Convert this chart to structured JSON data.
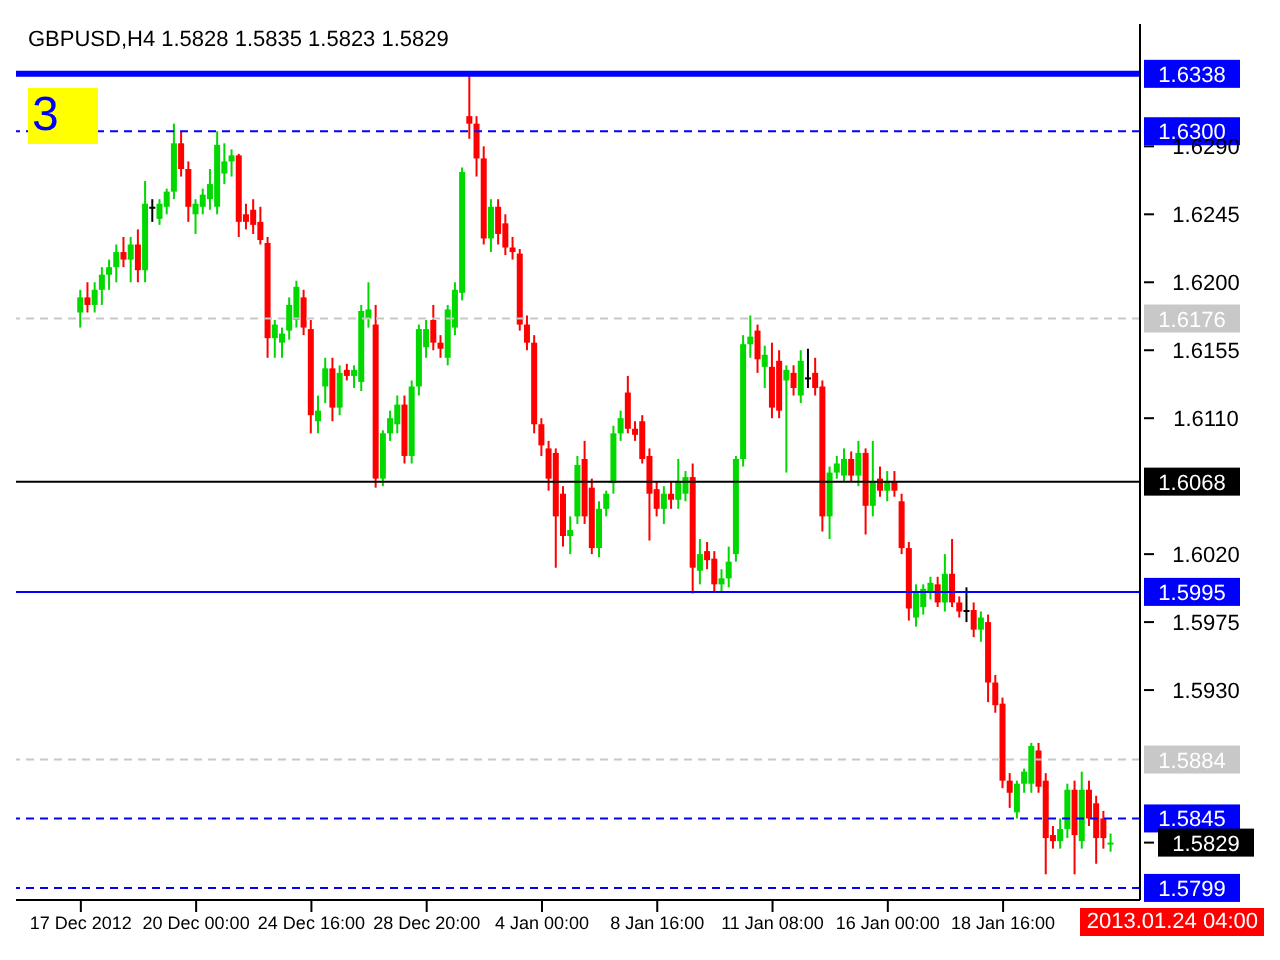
{
  "chart_data": {
    "type": "candlestick",
    "title": "GBPUSD,H4  1.5828 1.5835 1.5823 1.5829",
    "categories": [
      "17 Dec 2012",
      null,
      null,
      null,
      null,
      null,
      null,
      null,
      null,
      null,
      null,
      null,
      null,
      null,
      null,
      null,
      "20 Dec 00:00",
      null,
      null,
      null,
      null,
      null,
      null,
      null,
      null,
      null,
      null,
      null,
      null,
      null,
      null,
      null,
      "24 Dec 16:00",
      null,
      null,
      null,
      null,
      null,
      null,
      null,
      null,
      null,
      null,
      null,
      null,
      null,
      null,
      null,
      "28 Dec 20:00",
      null,
      null,
      null,
      null,
      null,
      null,
      null,
      null,
      null,
      null,
      null,
      null,
      null,
      null,
      null,
      "4 Jan 00:00",
      null,
      null,
      null,
      null,
      null,
      null,
      null,
      null,
      null,
      null,
      null,
      null,
      null,
      null,
      null,
      "8 Jan 16:00",
      null,
      null,
      null,
      null,
      null,
      null,
      null,
      null,
      null,
      null,
      null,
      null,
      null,
      null,
      null,
      "11 Jan 08:00",
      null,
      null,
      null,
      null,
      null,
      null,
      null,
      null,
      null,
      null,
      null,
      null,
      null,
      null,
      null,
      "16 Jan 00:00",
      null,
      null,
      null,
      null,
      null,
      null,
      null,
      null,
      null,
      null,
      null,
      null,
      null,
      null,
      null,
      "18 Jan 16:00",
      null,
      null,
      null,
      null,
      null,
      null,
      null,
      null,
      null,
      null,
      null,
      null,
      null,
      null,
      null
    ],
    "ohlc": [
      [
        1.618,
        1.6195,
        1.617,
        1.619
      ],
      [
        1.619,
        1.62,
        1.618,
        1.6185
      ],
      [
        1.6185,
        1.62,
        1.618,
        1.6195
      ],
      [
        1.6195,
        1.621,
        1.6185,
        1.6205
      ],
      [
        1.6205,
        1.6215,
        1.6195,
        1.621
      ],
      [
        1.621,
        1.6225,
        1.62,
        1.622
      ],
      [
        1.622,
        1.623,
        1.621,
        1.6215
      ],
      [
        1.6215,
        1.623,
        1.62,
        1.6225
      ],
      [
        1.6225,
        1.6235,
        1.62,
        1.6208
      ],
      [
        1.6208,
        1.6267,
        1.62,
        1.6252
      ],
      [
        1.625,
        1.6255,
        1.624,
        1.625
      ],
      [
        1.6242,
        1.6255,
        1.6238,
        1.6252
      ],
      [
        1.625,
        1.6262,
        1.6245,
        1.626
      ],
      [
        1.626,
        1.6305,
        1.6255,
        1.6292
      ],
      [
        1.6292,
        1.63,
        1.627,
        1.6275
      ],
      [
        1.6275,
        1.628,
        1.624,
        1.625
      ],
      [
        1.6245,
        1.6255,
        1.6232,
        1.6252
      ],
      [
        1.625,
        1.6262,
        1.6245,
        1.6258
      ],
      [
        1.6255,
        1.6275,
        1.6248,
        1.6265
      ],
      [
        1.625,
        1.63,
        1.6245,
        1.6291
      ],
      [
        1.6272,
        1.6292,
        1.6265,
        1.628
      ],
      [
        1.628,
        1.6288,
        1.627,
        1.6284
      ],
      [
        1.6284,
        1.6285,
        1.623,
        1.624
      ],
      [
        1.6245,
        1.6252,
        1.6235,
        1.624
      ],
      [
        1.6248,
        1.6255,
        1.6232,
        1.6238
      ],
      [
        1.624,
        1.625,
        1.6225,
        1.6228
      ],
      [
        1.6226,
        1.623,
        1.615,
        1.6163
      ],
      [
        1.6163,
        1.6175,
        1.615,
        1.6172
      ],
      [
        1.616,
        1.617,
        1.615,
        1.6166
      ],
      [
        1.6168,
        1.619,
        1.6162,
        1.6185
      ],
      [
        1.6175,
        1.6201,
        1.617,
        1.6197
      ],
      [
        1.619,
        1.6195,
        1.6165,
        1.617
      ],
      [
        1.6169,
        1.6175,
        1.61,
        1.6112
      ],
      [
        1.6108,
        1.6125,
        1.61,
        1.6115
      ],
      [
        1.6131,
        1.615,
        1.612,
        1.6143
      ],
      [
        1.6143,
        1.615,
        1.6108,
        1.6117
      ],
      [
        1.6117,
        1.6145,
        1.6112,
        1.614
      ],
      [
        1.6142,
        1.6146,
        1.6135,
        1.6138
      ],
      [
        1.6138,
        1.6145,
        1.613,
        1.6142
      ],
      [
        1.6134,
        1.6185,
        1.6128,
        1.6181
      ],
      [
        1.6176,
        1.62,
        1.617,
        1.6182
      ],
      [
        1.6172,
        1.6185,
        1.6064,
        1.607
      ],
      [
        1.607,
        1.6102,
        1.6065,
        1.61
      ],
      [
        1.61,
        1.6115,
        1.6095,
        1.611
      ],
      [
        1.6106,
        1.6125,
        1.61,
        1.6119
      ],
      [
        1.6119,
        1.6125,
        1.608,
        1.6085
      ],
      [
        1.6085,
        1.6135,
        1.608,
        1.6131
      ],
      [
        1.6131,
        1.6172,
        1.6125,
        1.6169
      ],
      [
        1.6157,
        1.6175,
        1.615,
        1.6169
      ],
      [
        1.6175,
        1.6185,
        1.6155,
        1.616
      ],
      [
        1.616,
        1.6165,
        1.615,
        1.6156
      ],
      [
        1.615,
        1.6185,
        1.6145,
        1.6182
      ],
      [
        1.617,
        1.62,
        1.6165,
        1.6195
      ],
      [
        1.6193,
        1.6276,
        1.6188,
        1.6273
      ],
      [
        1.631,
        1.6337,
        1.6295,
        1.6305
      ],
      [
        1.6305,
        1.631,
        1.627,
        1.6282
      ],
      [
        1.6282,
        1.629,
        1.6225,
        1.6229
      ],
      [
        1.6229,
        1.6255,
        1.622,
        1.625
      ],
      [
        1.625,
        1.6255,
        1.6225,
        1.6232
      ],
      [
        1.6239,
        1.6245,
        1.6218,
        1.6223
      ],
      [
        1.6223,
        1.623,
        1.6215,
        1.622
      ],
      [
        1.6219,
        1.6222,
        1.6168,
        1.6172
      ],
      [
        1.6172,
        1.6178,
        1.6155,
        1.616
      ],
      [
        1.616,
        1.6165,
        1.61,
        1.6106
      ],
      [
        1.6106,
        1.611,
        1.6085,
        1.6092
      ],
      [
        1.609,
        1.6095,
        1.6062,
        1.607
      ],
      [
        1.6087,
        1.609,
        1.6011,
        1.6045
      ],
      [
        1.606,
        1.6065,
        1.6025,
        1.6032
      ],
      [
        1.6032,
        1.6045,
        1.602,
        1.6036
      ],
      [
        1.6045,
        1.6085,
        1.604,
        1.6079
      ],
      [
        1.6083,
        1.6095,
        1.604,
        1.6045
      ],
      [
        1.6064,
        1.607,
        1.602,
        1.6024
      ],
      [
        1.6024,
        1.6055,
        1.6018,
        1.605
      ],
      [
        1.605,
        1.6062,
        1.6045,
        1.606
      ],
      [
        1.6067,
        1.6105,
        1.606,
        1.61
      ],
      [
        1.61,
        1.6115,
        1.6095,
        1.611
      ],
      [
        1.6127,
        1.6138,
        1.61,
        1.6103
      ],
      [
        1.6103,
        1.6108,
        1.6095,
        1.6099
      ],
      [
        1.6108,
        1.6112,
        1.608,
        1.6083
      ],
      [
        1.6085,
        1.609,
        1.6029,
        1.606
      ],
      [
        1.6063,
        1.6068,
        1.6045,
        1.605
      ],
      [
        1.605,
        1.6065,
        1.604,
        1.606
      ],
      [
        1.606,
        1.6068,
        1.605,
        1.6056
      ],
      [
        1.6056,
        1.6083,
        1.605,
        1.6068
      ],
      [
        1.606,
        1.6075,
        1.6055,
        1.6071
      ],
      [
        1.6071,
        1.608,
        1.5994,
        1.6011
      ],
      [
        1.6009,
        1.603,
        1.6,
        1.602
      ],
      [
        1.6022,
        1.6028,
        1.601,
        1.6016
      ],
      [
        1.6017,
        1.6022,
        1.5995,
        1.6
      ],
      [
        1.6,
        1.601,
        1.5995,
        1.6004
      ],
      [
        1.6004,
        1.6025,
        1.5998,
        1.6015
      ],
      [
        1.602,
        1.6085,
        1.6015,
        1.6083
      ],
      [
        1.6083,
        1.6165,
        1.6078,
        1.6159
      ],
      [
        1.6159,
        1.6178,
        1.615,
        1.6164
      ],
      [
        1.6168,
        1.6172,
        1.614,
        1.6149
      ],
      [
        1.6144,
        1.6158,
        1.613,
        1.6152
      ],
      [
        1.6144,
        1.616,
        1.611,
        1.6117
      ],
      [
        1.6148,
        1.6155,
        1.611,
        1.6115
      ],
      [
        1.6135,
        1.6145,
        1.6074,
        1.6142
      ],
      [
        1.614,
        1.6145,
        1.6125,
        1.613
      ],
      [
        1.6125,
        1.6155,
        1.612,
        1.6148
      ],
      [
        1.6137,
        1.6156,
        1.613,
        1.6137
      ],
      [
        1.614,
        1.615,
        1.6125,
        1.613
      ],
      [
        1.6131,
        1.6135,
        1.6035,
        1.6045
      ],
      [
        1.6045,
        1.6078,
        1.603,
        1.6074
      ],
      [
        1.6074,
        1.6085,
        1.607,
        1.608
      ],
      [
        1.6072,
        1.609,
        1.6068,
        1.6083
      ],
      [
        1.6083,
        1.6088,
        1.6068,
        1.6072
      ],
      [
        1.6072,
        1.6095,
        1.6065,
        1.6087
      ],
      [
        1.6087,
        1.609,
        1.6033,
        1.6052
      ],
      [
        1.6052,
        1.6095,
        1.6045,
        1.6068
      ],
      [
        1.607,
        1.6078,
        1.6058,
        1.6062
      ],
      [
        1.6062,
        1.6075,
        1.6055,
        1.6068
      ],
      [
        1.6068,
        1.6075,
        1.6058,
        1.6062
      ],
      [
        1.6055,
        1.606,
        1.602,
        1.6024
      ],
      [
        1.6024,
        1.6028,
        1.5976,
        1.5984
      ],
      [
        1.5978,
        1.6,
        1.5972,
        1.5995
      ],
      [
        1.5985,
        1.6,
        1.598,
        1.5997
      ],
      [
        1.5995,
        1.6005,
        1.599,
        1.6001
      ],
      [
        1.6,
        1.6005,
        1.5985,
        1.5988
      ],
      [
        1.5988,
        1.602,
        1.5982,
        1.6007
      ],
      [
        1.6007,
        1.603,
        1.5985,
        1.5988
      ],
      [
        1.5988,
        1.5992,
        1.5978,
        1.5982
      ],
      [
        1.5983,
        1.5998,
        1.5975,
        1.5983
      ],
      [
        1.5983,
        1.5988,
        1.5965,
        1.597
      ],
      [
        1.597,
        1.5982,
        1.5962,
        1.5978
      ],
      [
        1.5975,
        1.598,
        1.5922,
        1.5935
      ],
      [
        1.5935,
        1.594,
        1.5915,
        1.592
      ],
      [
        1.5921,
        1.5925,
        1.5865,
        1.587
      ],
      [
        1.587,
        1.5875,
        1.5852,
        1.5862
      ],
      [
        1.5849,
        1.587,
        1.5845,
        1.5868
      ],
      [
        1.5868,
        1.5878,
        1.5862,
        1.5876
      ],
      [
        1.5868,
        1.5895,
        1.5862,
        1.5893
      ],
      [
        1.589,
        1.5895,
        1.5862,
        1.5866
      ],
      [
        1.587,
        1.5875,
        1.5808,
        1.5832
      ],
      [
        1.5834,
        1.584,
        1.5825,
        1.583
      ],
      [
        1.583,
        1.5845,
        1.5825,
        1.5838
      ],
      [
        1.5838,
        1.5868,
        1.5832,
        1.5864
      ],
      [
        1.5864,
        1.587,
        1.5808,
        1.5834
      ],
      [
        1.583,
        1.5876,
        1.5825,
        1.5864
      ],
      [
        1.5864,
        1.587,
        1.584,
        1.5845
      ],
      [
        1.5855,
        1.586,
        1.5815,
        1.5832
      ],
      [
        1.5845,
        1.585,
        1.5825,
        1.5832
      ],
      [
        1.5828,
        1.5835,
        1.5823,
        1.5829
      ]
    ],
    "ylim": [
      1.5791,
      1.6371
    ],
    "yticks": [
      {
        "value": 1.629,
        "label": "1.6290"
      },
      1.6245,
      {
        "value": 1.62,
        "label": "1.6200"
      },
      1.6155,
      {
        "value": 1.611,
        "label": "1.6110"
      },
      {
        "value": 1.602,
        "label": "1.6020"
      },
      1.5975,
      {
        "value": 1.593,
        "label": "1.5930"
      },
      {
        "value": 1.5829,
        "label": "1.5829"
      }
    ],
    "ref_lines": [
      {
        "axis": "y",
        "value": 1.6338,
        "label": "1.6338",
        "color": "#0000ff",
        "line_style": "solid"
      },
      {
        "axis": "y",
        "value": 1.63,
        "label": "1.6300",
        "color": "#0000ff",
        "line_style": "dashed"
      },
      {
        "axis": "y",
        "value": 1.6176,
        "label": "1.6176",
        "color": "#c8c8c8",
        "line_style": "dashed"
      },
      {
        "axis": "y",
        "value": 1.6068,
        "label": "1.6068",
        "color": "#000000",
        "line_style": "solid"
      },
      {
        "axis": "y",
        "value": 1.5995,
        "label": "1.5995",
        "color": "#0000ff",
        "line_style": "solid"
      },
      {
        "axis": "y",
        "value": 1.5884,
        "label": "1.5884",
        "color": "#c8c8c8",
        "line_style": "dashed"
      },
      {
        "axis": "y",
        "value": 1.5845,
        "label": "1.5845",
        "color": "#0000ff",
        "line_style": "dashed"
      },
      {
        "axis": "y",
        "value": 1.5799,
        "label": "1.5799",
        "color": "#0000ff",
        "line_style": "dashed"
      }
    ],
    "annotations": [
      "3",
      "2013.01.24 04:00"
    ]
  }
}
